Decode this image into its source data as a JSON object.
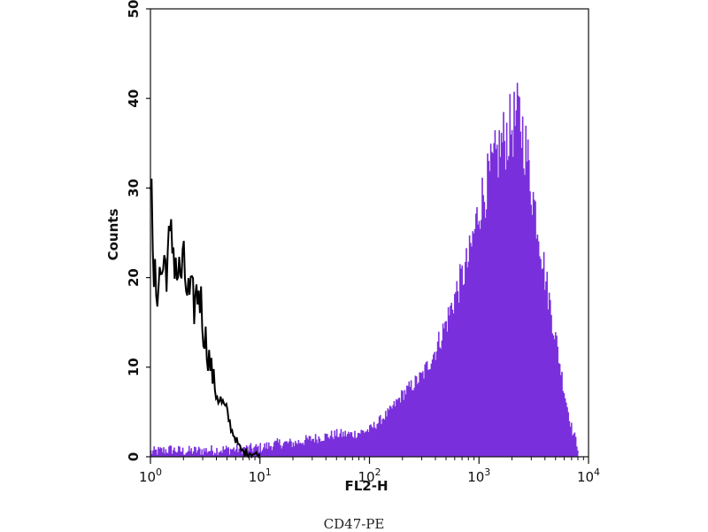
{
  "chart_data": {
    "type": "area",
    "xlabel": "FL2-H",
    "ylabel": "Counts",
    "x_scale": "log",
    "xlim": [
      1,
      10000
    ],
    "ylim": [
      0,
      50
    ],
    "x_ticks": [
      {
        "value": 1,
        "base": "10",
        "exp": "0"
      },
      {
        "value": 10,
        "base": "10",
        "exp": "1"
      },
      {
        "value": 100,
        "base": "10",
        "exp": "2"
      },
      {
        "value": 1000,
        "base": "10",
        "exp": "3"
      },
      {
        "value": 10000,
        "base": "10",
        "exp": "4"
      }
    ],
    "y_ticks": [
      "0",
      "10",
      "20",
      "30",
      "40",
      "50"
    ],
    "grid": false,
    "series": [
      {
        "style": "filled",
        "color": "#7a2fdc",
        "x": [
          1,
          1.5,
          2,
          3,
          5,
          8,
          10,
          15,
          20,
          30,
          50,
          70,
          100,
          150,
          200,
          300,
          400,
          500,
          600,
          800,
          1000,
          1300,
          1600,
          2000,
          2300,
          2600,
          3000,
          3500,
          4000,
          5000,
          6000,
          7000,
          8000
        ],
        "y": [
          0.5,
          0.8,
          0.6,
          0.7,
          0.8,
          0.9,
          1,
          1.5,
          1.5,
          2,
          2.5,
          2.5,
          3,
          5,
          7,
          9,
          12,
          15,
          18,
          22,
          28,
          32,
          35,
          37,
          38,
          35,
          30,
          25,
          20,
          13,
          7,
          3,
          1
        ]
      },
      {
        "style": "outline",
        "color": "#000000",
        "x": [
          1,
          1.05,
          1.1,
          1.2,
          1.4,
          1.6,
          1.8,
          2,
          2.2,
          2.5,
          2.8,
          3,
          3.3,
          3.7,
          4,
          4.5,
          5,
          5.5,
          6,
          6.5,
          7,
          8,
          9,
          10
        ],
        "y": [
          33,
          21,
          19,
          20,
          22,
          24,
          20,
          21,
          18,
          17,
          19,
          15,
          12,
          9,
          7,
          6,
          5,
          3,
          2,
          1,
          0.5,
          0.5,
          0.3,
          0
        ]
      }
    ]
  },
  "caption": "CD47-PE"
}
